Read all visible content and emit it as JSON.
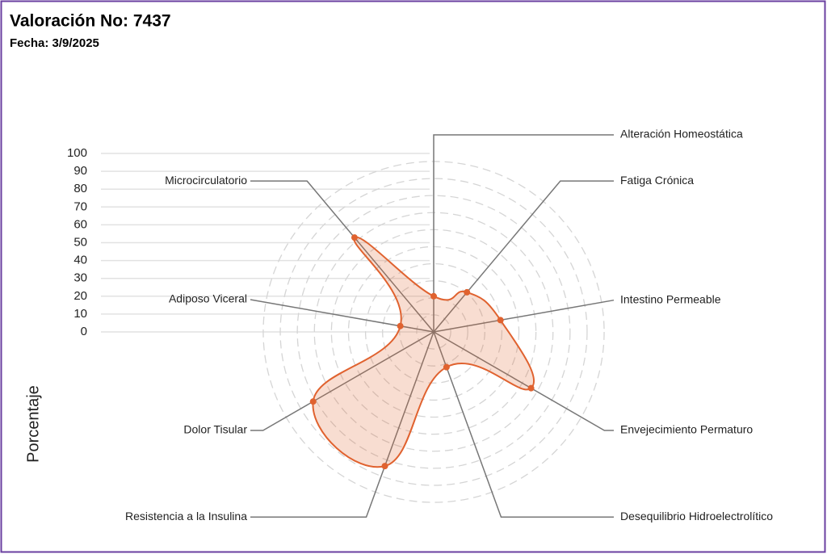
{
  "chart_data": {
    "type": "radar",
    "title": "Valoración No: 7437",
    "subtitle": "Fecha: 3/9/2025",
    "ylabel": "Porcentaje",
    "categories": [
      "Alteración Homeostática",
      "Fatiga Crónica",
      "Intestino Permeable",
      "Envejecimiento Permaturo",
      "Desequilibrio Hidroelectrolítico",
      "Resistencia a la Insulina",
      "Dolor Tisular",
      "Adiposo Viceral",
      "Microcirculatorio"
    ],
    "values": [
      20,
      29,
      38,
      63,
      21,
      80,
      78,
      19,
      69
    ],
    "color": "#e0622f",
    "ylim": [
      0,
      100
    ],
    "yticks": [
      0,
      10,
      20,
      30,
      40,
      50,
      60,
      70,
      80,
      90,
      100
    ],
    "grid": true
  }
}
